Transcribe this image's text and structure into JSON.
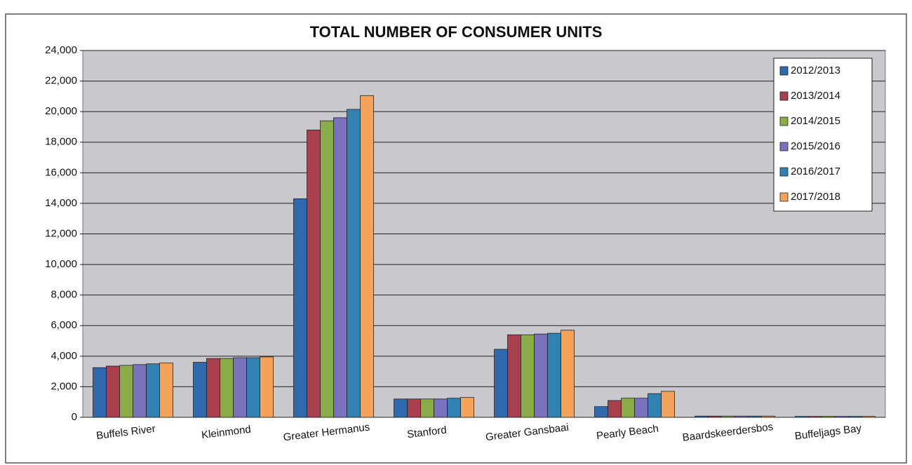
{
  "chart_data": {
    "type": "bar",
    "title": "TOTAL NUMBER OF CONSUMER UNITS",
    "categories": [
      "Buffels River",
      "Kleinmond",
      "Greater Hermanus",
      "Stanford",
      "Greater Gansbaai",
      "Pearly Beach",
      "Baardskeerdersbos",
      "Buffeljags Bay"
    ],
    "series": [
      {
        "name": "2012/2013",
        "color": "#2f6aae",
        "values": [
          3250,
          3600,
          14300,
          1200,
          4450,
          700,
          80,
          60
        ]
      },
      {
        "name": "2013/2014",
        "color": "#a8404e",
        "values": [
          3350,
          3850,
          18800,
          1200,
          5400,
          1100,
          80,
          60
        ]
      },
      {
        "name": "2014/2015",
        "color": "#8aad4a",
        "values": [
          3400,
          3850,
          19400,
          1200,
          5400,
          1250,
          80,
          60
        ]
      },
      {
        "name": "2015/2016",
        "color": "#7b72bd",
        "values": [
          3450,
          3900,
          19600,
          1200,
          5450,
          1250,
          80,
          60
        ]
      },
      {
        "name": "2016/2017",
        "color": "#2f82b2",
        "values": [
          3500,
          3900,
          20150,
          1250,
          5500,
          1550,
          80,
          60
        ]
      },
      {
        "name": "2017/2018",
        "color": "#f5a35a",
        "values": [
          3550,
          3950,
          21050,
          1300,
          5700,
          1700,
          80,
          60
        ]
      }
    ],
    "ylim": [
      0,
      24000
    ],
    "yticks": [
      0,
      {
        "value": 2000,
        "label": "2,000"
      },
      {
        "value": 4000,
        "label": "4,000"
      },
      {
        "value": 6000,
        "label": "6,000"
      },
      {
        "value": 8000,
        "label": "8,000"
      },
      {
        "value": 10000,
        "label": "10,000"
      },
      {
        "value": 12000,
        "label": "12,000"
      },
      {
        "value": 14000,
        "label": "14,000"
      },
      {
        "value": 16000,
        "label": "16,000"
      },
      {
        "value": 18000,
        "label": "18,000"
      },
      {
        "value": 20000,
        "label": "20,000"
      },
      {
        "value": 22000,
        "label": "22,000"
      },
      {
        "value": 24000,
        "label": "24,000"
      }
    ],
    "grid": true,
    "legend": "top-right"
  }
}
